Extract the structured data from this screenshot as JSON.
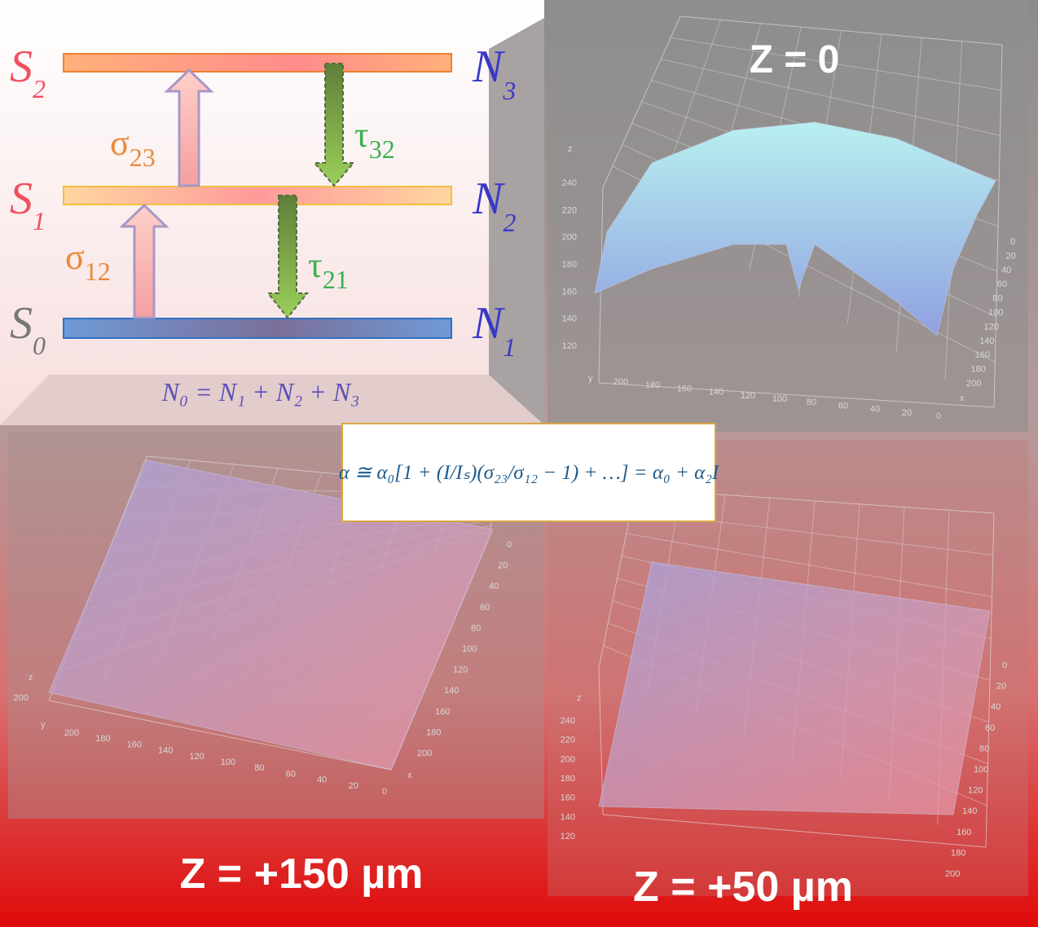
{
  "energy_diagram": {
    "levels": [
      {
        "state": "S",
        "state_sub": "2",
        "population": "N",
        "population_sub": "3"
      },
      {
        "state": "S",
        "state_sub": "1",
        "population": "N",
        "population_sub": "2"
      },
      {
        "state": "S",
        "state_sub": "0",
        "population": "N",
        "population_sub": "1"
      }
    ],
    "transitions": [
      {
        "symbol": "σ",
        "sub": "23"
      },
      {
        "symbol": "σ",
        "sub": "12"
      },
      {
        "symbol": "τ",
        "sub": "32"
      },
      {
        "symbol": "τ",
        "sub": "21"
      }
    ],
    "conservation": "N₀ = N₁ + N₂ + N₃"
  },
  "formula": "α ≅ α₀[1 + (I/Iₛ)(σ₂₃/σ₁₂ − 1) + …] = α₀ + α₂I",
  "panels": [
    {
      "label": "Z = 0",
      "z_axis": "z",
      "y_axis": "y",
      "x_axis": "x",
      "z_ticks": [
        120,
        140,
        160,
        180,
        200,
        220,
        240
      ],
      "y_ticks": [
        200,
        180,
        160,
        140,
        120,
        100,
        80,
        60,
        40,
        20,
        0
      ],
      "x_ticks": [
        0,
        20,
        40,
        60,
        80,
        100,
        120,
        140,
        160,
        180,
        200
      ]
    },
    {
      "label": "Z = +150 µm",
      "z_axis": "z",
      "y_axis": "y",
      "x_axis": "x",
      "z_ticks": [
        200
      ],
      "y_ticks": [
        200,
        180,
        160,
        140,
        120,
        100,
        80,
        60,
        40,
        20,
        0
      ],
      "x_ticks": [
        0,
        20,
        40,
        60,
        80,
        100,
        120,
        140,
        160,
        180,
        200
      ]
    },
    {
      "label": "Z = +50 µm",
      "z_axis": "z",
      "z_ticks": [
        120,
        140,
        160,
        180,
        200,
        220,
        240
      ],
      "x_ticks": [
        0,
        20,
        40,
        60,
        80,
        100,
        120,
        140,
        160,
        180,
        200
      ]
    }
  ]
}
